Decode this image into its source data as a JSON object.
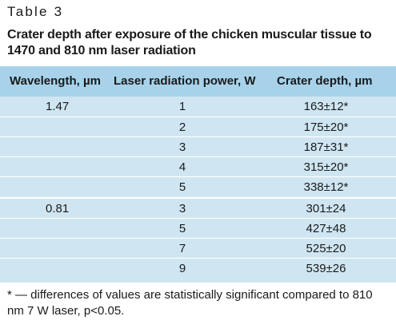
{
  "table_label": "Table 3",
  "caption": "Crater depth after exposure of the chicken muscular tissue to 1470 and 810 nm laser radiation",
  "headers": [
    "Wavelength, µm",
    "Laser radiation power, W",
    "Crater depth, µm"
  ],
  "rows": [
    {
      "wavelength": "1.47",
      "power": "1",
      "depth": "163±12*"
    },
    {
      "wavelength": "",
      "power": "2",
      "depth": "175±20*"
    },
    {
      "wavelength": "",
      "power": "3",
      "depth": "187±31*"
    },
    {
      "wavelength": "",
      "power": "4",
      "depth": "315±20*"
    },
    {
      "wavelength": "",
      "power": "5",
      "depth": "338±12*"
    },
    {
      "wavelength": "0.81",
      "power": "3",
      "depth": "301±24"
    },
    {
      "wavelength": "",
      "power": "5",
      "depth": "427±48"
    },
    {
      "wavelength": "",
      "power": "7",
      "depth": "525±20"
    },
    {
      "wavelength": "",
      "power": "9",
      "depth": "539±26"
    }
  ],
  "footnote": "* — differences of values are statistically significant compared to 810 nm 7 W laser, p<0.05.",
  "colors": {
    "header_bg": "#a7d2ea",
    "body_bg": "#cfe6f2"
  }
}
